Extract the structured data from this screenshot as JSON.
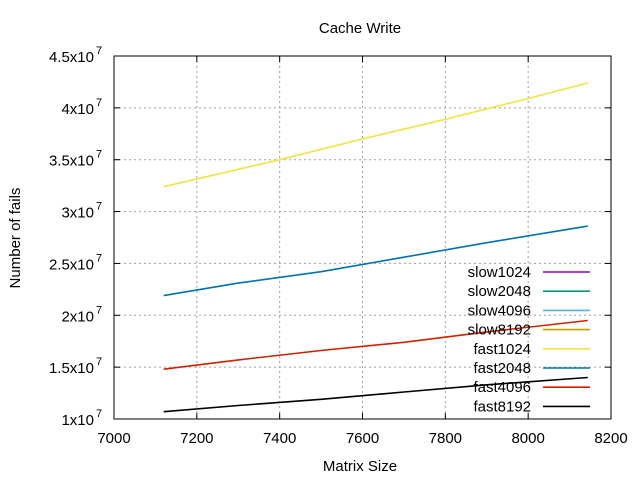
{
  "chart_data": {
    "type": "line",
    "title": "Cache Write",
    "xlabel": "Matrix Size",
    "ylabel": "Number of fails",
    "xlim": [
      7000,
      8200
    ],
    "ylim": [
      10000000,
      45000000
    ],
    "grid": true,
    "legend_position": "bottom-right",
    "x_ticks": [
      7000,
      7200,
      7400,
      7600,
      7800,
      8000,
      8200
    ],
    "x_tick_labels": [
      "7000",
      "7200",
      "7400",
      "7600",
      "7800",
      "8000",
      "8200"
    ],
    "y_ticks": [
      {
        "value": 10000000,
        "mantissa": "1x10",
        "exp": "7"
      },
      {
        "value": 15000000,
        "mantissa": "1.5x10",
        "exp": "7"
      },
      {
        "value": 20000000,
        "mantissa": "2x10",
        "exp": "7"
      },
      {
        "value": 25000000,
        "mantissa": "2.5x10",
        "exp": "7"
      },
      {
        "value": 30000000,
        "mantissa": "3x10",
        "exp": "7"
      },
      {
        "value": 35000000,
        "mantissa": "3.5x10",
        "exp": "7"
      },
      {
        "value": 40000000,
        "mantissa": "4x10",
        "exp": "7"
      },
      {
        "value": 45000000,
        "mantissa": "4.5x10",
        "exp": "7"
      }
    ],
    "series": [
      {
        "name": "slow1024",
        "color": "#9400d3",
        "x": [],
        "y": []
      },
      {
        "name": "slow2048",
        "color": "#009e73",
        "x": [],
        "y": []
      },
      {
        "name": "slow4096",
        "color": "#56b4e9",
        "x": [],
        "y": []
      },
      {
        "name": "slow8192",
        "color": "#c8a000",
        "x": [],
        "y": []
      },
      {
        "name": "fast1024",
        "color": "#f0e442",
        "x": [
          7120,
          7400,
          7600,
          7800,
          8000,
          8144
        ],
        "y": [
          32400000,
          35000000,
          37000000,
          38900000,
          40900000,
          42400000
        ]
      },
      {
        "name": "fast2048",
        "color": "#0072b2",
        "x": [
          7120,
          7300,
          7500,
          7700,
          7900,
          8144
        ],
        "y": [
          21900000,
          23100000,
          24200000,
          25600000,
          27000000,
          28600000
        ]
      },
      {
        "name": "fast4096",
        "color": "#cc2200",
        "x": [
          7120,
          7300,
          7500,
          7700,
          7900,
          8144
        ],
        "y": [
          14800000,
          15700000,
          16600000,
          17400000,
          18400000,
          19500000
        ]
      },
      {
        "name": "fast8192",
        "color": "#000000",
        "x": [
          7120,
          7300,
          7500,
          7700,
          7900,
          8144
        ],
        "y": [
          10700000,
          11300000,
          11900000,
          12600000,
          13300000,
          14000000
        ]
      }
    ]
  }
}
